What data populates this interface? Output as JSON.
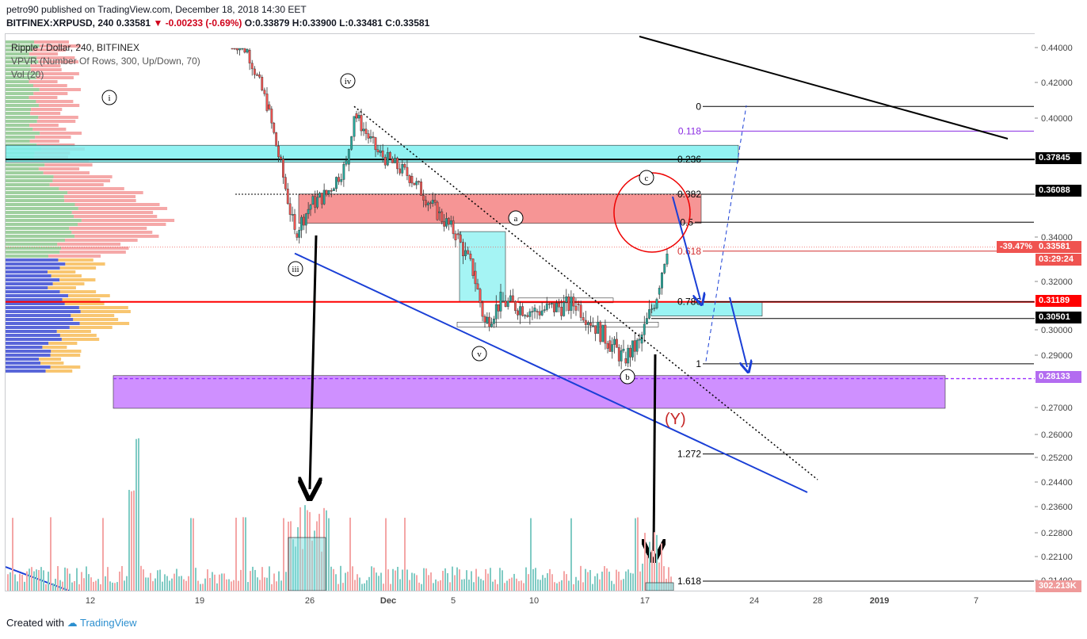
{
  "header": {
    "published_line": "petro90 published on TradingView.com, December 18, 2018 14:30 EET",
    "symbol": "BITFINEX:XRPUSD, 240",
    "last": "0.33581",
    "change": "-0.00233 (-0.69%)",
    "ohlc": "O:0.33879 H:0.33900 L:0.33481 C:0.33581"
  },
  "legend": {
    "title": "Ripple / Dollar, 240, BITFINEX",
    "vpvr": "VPVR (Number Of Rows, 300, Up/Down, 70)",
    "vol": "Vol (20)"
  },
  "footer": {
    "created_with": "Created with",
    "brand": "TradingView"
  },
  "price_axis": {
    "ticks": [
      "0.44000",
      "0.42000",
      "0.40000",
      "0.34000",
      "0.32000",
      "0.30000",
      "0.29000",
      "0.27000",
      "0.26000",
      "0.25200",
      "0.24400",
      "0.23600",
      "0.22800",
      "0.22100",
      "0.21400"
    ],
    "tags": [
      {
        "text": "0.37845",
        "bg": "#000000",
        "fg": "#ffffff"
      },
      {
        "text": "0.36088",
        "bg": "#000000",
        "fg": "#ffffff"
      },
      {
        "text": "-39.47%",
        "bg": "#ef5350",
        "fg": "#ffffff"
      },
      {
        "text": "0.33581",
        "bg": "#ef5350",
        "fg": "#ffffff"
      },
      {
        "text": "03:29:24",
        "bg": "#ef5350",
        "fg": "#ffffff"
      },
      {
        "text": "0.31189",
        "bg": "#ff0000",
        "fg": "#ffffff"
      },
      {
        "text": "0.30501",
        "bg": "#000000",
        "fg": "#ffffff"
      },
      {
        "text": "0.28133",
        "bg": "#b36cf0",
        "fg": "#ffffff"
      },
      {
        "text": "302.213K",
        "bg": "#ef9a9a",
        "fg": "#ffffff"
      }
    ]
  },
  "time_axis": [
    "12",
    "19",
    "26",
    "Dec",
    "5",
    "10",
    "17",
    "24",
    "28",
    "2019",
    "7"
  ],
  "colors": {
    "up": "#26a69a",
    "down": "#ef5350",
    "fib": "#000000",
    "channel": "#1a3fd6",
    "resistance": "#ff0000",
    "zone_cyan": "#7ff0f0",
    "zone_red": "#f47a7a",
    "zone_purple": "#c77dff"
  },
  "chart_data": {
    "type": "candlestick",
    "title": "Ripple / Dollar, 240, BITFINEX",
    "ylabel": "",
    "ylim": [
      0.21,
      0.445
    ],
    "fib_levels": [
      {
        "label": "0",
        "value": 0.407
      },
      {
        "label": "0.118",
        "value": 0.3935
      },
      {
        "label": "0.236",
        "value": 0.37845
      },
      {
        "label": "0.382",
        "value": 0.36088
      },
      {
        "label": "0.5",
        "value": 0.3475
      },
      {
        "label": "0.618",
        "value": 0.334
      },
      {
        "label": "0.786",
        "value": 0.31189
      },
      {
        "label": "1",
        "value": 0.287
      },
      {
        "label": "1.272",
        "value": 0.2535
      },
      {
        "label": "1.618",
        "value": 0.211
      }
    ],
    "horizontal_levels": [
      0.37845,
      0.36088,
      0.31189,
      0.30501,
      0.28133
    ],
    "wave_labels": [
      "i",
      "iii",
      "iv",
      "v",
      "a",
      "b",
      "c",
      "(Y)"
    ],
    "last_price": 0.33581,
    "last_volume": "302.213K",
    "price_path": [
      {
        "x": "Nov 21",
        "y": 0.445
      },
      {
        "x": "Nov 22",
        "y": 0.439
      },
      {
        "x": "Nov 23",
        "y": 0.408
      },
      {
        "x": "Nov 24",
        "y": 0.342
      },
      {
        "x": "Nov 25",
        "y": 0.356
      },
      {
        "x": "Nov 26",
        "y": 0.361
      },
      {
        "x": "Nov 28",
        "y": 0.376
      },
      {
        "x": "Nov 29",
        "y": 0.403
      },
      {
        "x": "Nov 30",
        "y": 0.382
      },
      {
        "x": "Dec 2",
        "y": 0.37
      },
      {
        "x": "Dec 4",
        "y": 0.352
      },
      {
        "x": "Dec 5",
        "y": 0.342
      },
      {
        "x": "Dec 6",
        "y": 0.325
      },
      {
        "x": "Dec 7",
        "y": 0.303
      },
      {
        "x": "Dec 8",
        "y": 0.312
      },
      {
        "x": "Dec 10",
        "y": 0.308
      },
      {
        "x": "Dec 12",
        "y": 0.311
      },
      {
        "x": "Dec 14",
        "y": 0.296
      },
      {
        "x": "Dec 15",
        "y": 0.289
      },
      {
        "x": "Dec 16",
        "y": 0.295
      },
      {
        "x": "Dec 17",
        "y": 0.315
      },
      {
        "x": "Dec 18",
        "y": 0.336
      }
    ]
  }
}
